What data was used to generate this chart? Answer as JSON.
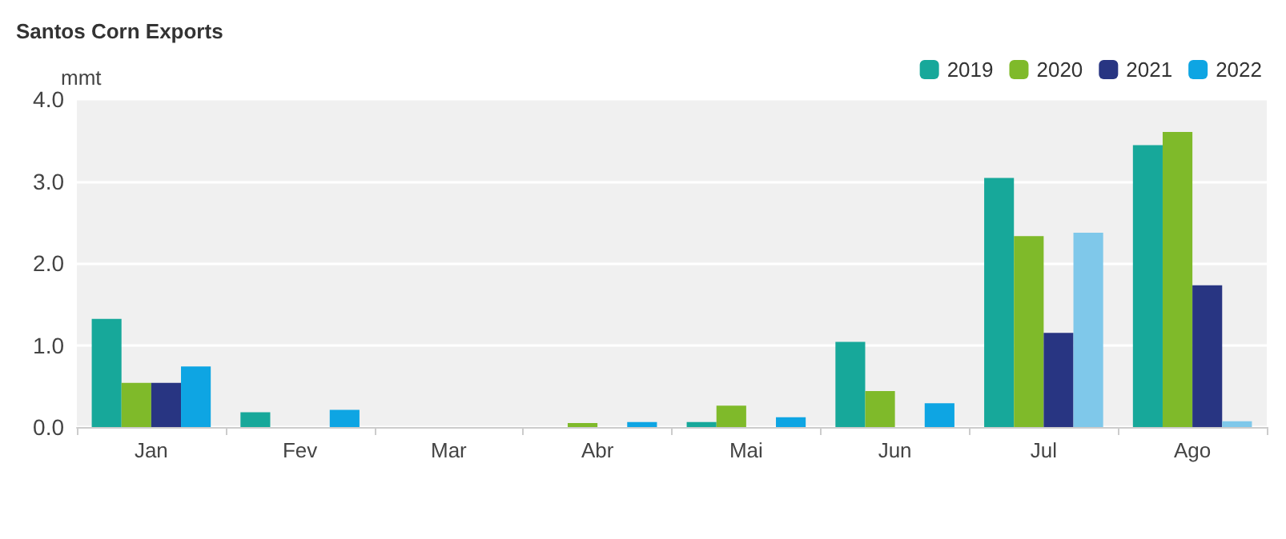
{
  "chart_data": {
    "type": "bar",
    "title": "Santos Corn Exports",
    "ylabel": "mmt",
    "categories": [
      "Jan",
      "Fev",
      "Mar",
      "Abr",
      "Mai",
      "Jun",
      "Jul",
      "Ago"
    ],
    "series": [
      {
        "name": "2019",
        "color": "#17a89a",
        "values": [
          1.32,
          0.18,
          0,
          0,
          0.06,
          1.04,
          3.04,
          3.44
        ]
      },
      {
        "name": "2020",
        "color": "#7fba2a",
        "values": [
          0.54,
          0,
          0,
          0.05,
          0.26,
          0.44,
          2.33,
          3.6
        ]
      },
      {
        "name": "2021",
        "color": "#283582",
        "values": [
          0.54,
          0,
          0,
          0,
          0,
          0,
          1.15,
          1.73
        ]
      },
      {
        "name": "2022",
        "color": "#0ea5e3",
        "colors": [
          "#0ea5e3",
          "#0ea5e3",
          "#0ea5e3",
          "#0ea5e3",
          "#0ea5e3",
          "#0ea5e3",
          "#7fc8ea",
          "#7fc8ea"
        ],
        "values": [
          0.74,
          0.21,
          0,
          0.06,
          0.12,
          0.29,
          2.37,
          0.07
        ]
      }
    ],
    "ylim": [
      0,
      4
    ],
    "yticks": [
      {
        "value": 0,
        "label": "0.0"
      },
      {
        "value": 1,
        "label": "1.0"
      },
      {
        "value": 2,
        "label": "2.0"
      },
      {
        "value": 3,
        "label": "3.0"
      },
      {
        "value": 4,
        "label": "4.0"
      }
    ],
    "grid": "y",
    "legend": "top right"
  }
}
